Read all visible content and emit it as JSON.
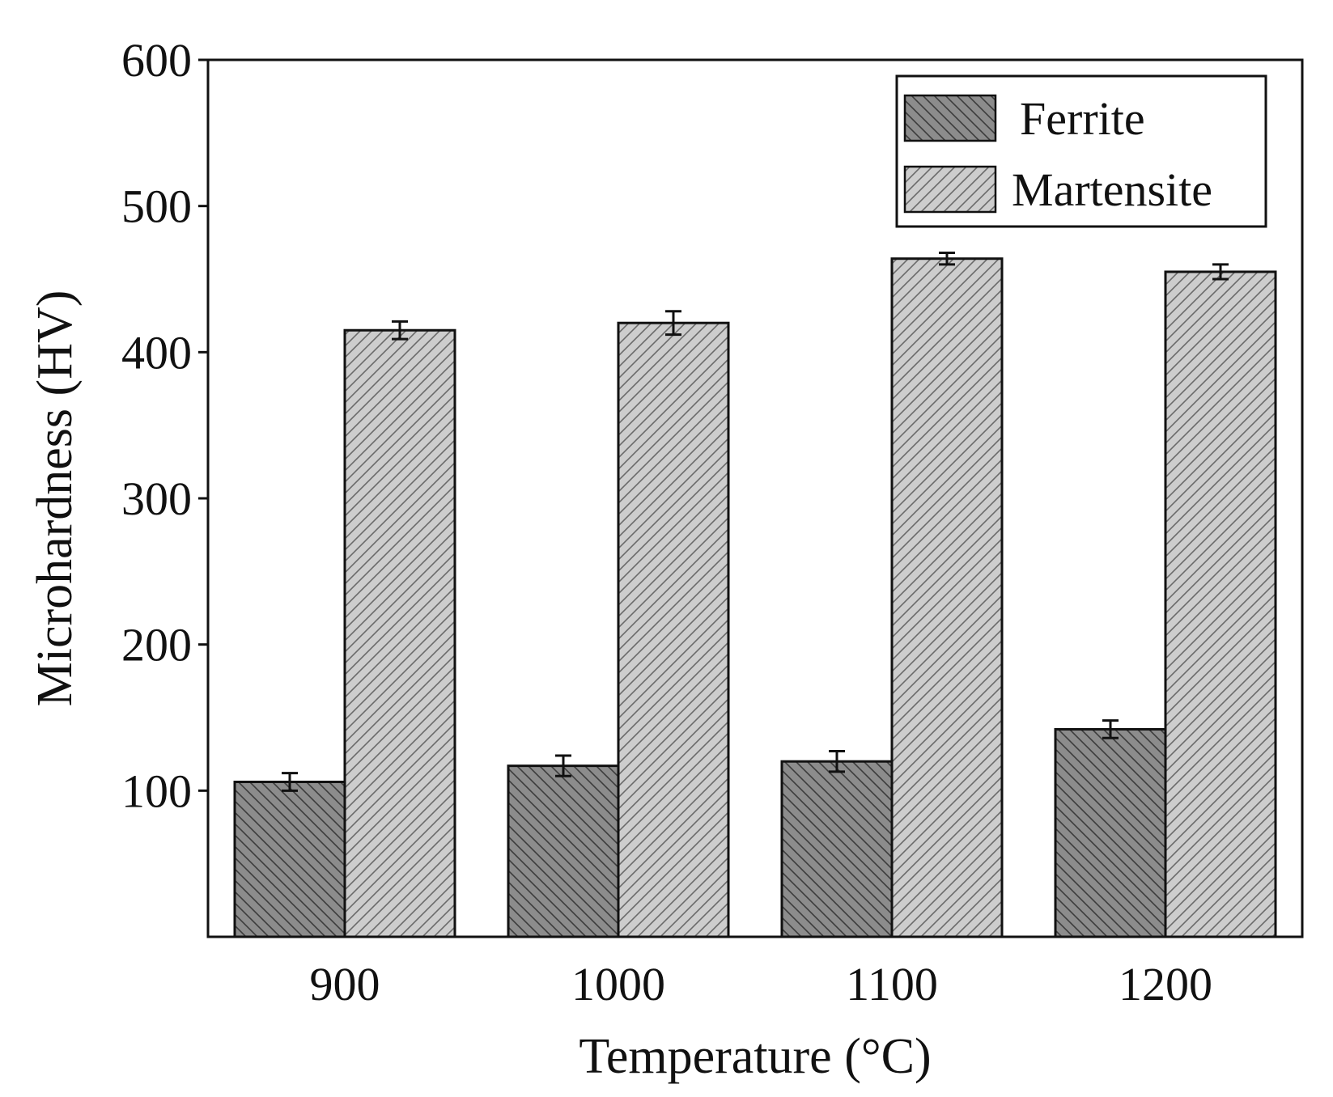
{
  "chart_data": {
    "type": "bar",
    "title": "",
    "xlabel": "Temperature (°C)",
    "ylabel": "Microhardness (HV)",
    "ylim": [
      0,
      600
    ],
    "yticks": [
      100,
      200,
      300,
      400,
      500,
      600
    ],
    "categories": [
      "900",
      "1000",
      "1100",
      "1200"
    ],
    "series": [
      {
        "name": "Ferrite",
        "values": [
          106,
          117,
          120,
          142
        ],
        "errors": [
          6,
          7,
          7,
          6
        ],
        "color": "#8c8c8c",
        "hatch": "backslash"
      },
      {
        "name": "Martensite",
        "values": [
          415,
          420,
          464,
          455
        ],
        "errors": [
          6,
          8,
          4,
          5
        ],
        "color": "#c8c8c8",
        "hatch": "slash"
      }
    ],
    "grid": false,
    "legend_position": "top-right"
  }
}
